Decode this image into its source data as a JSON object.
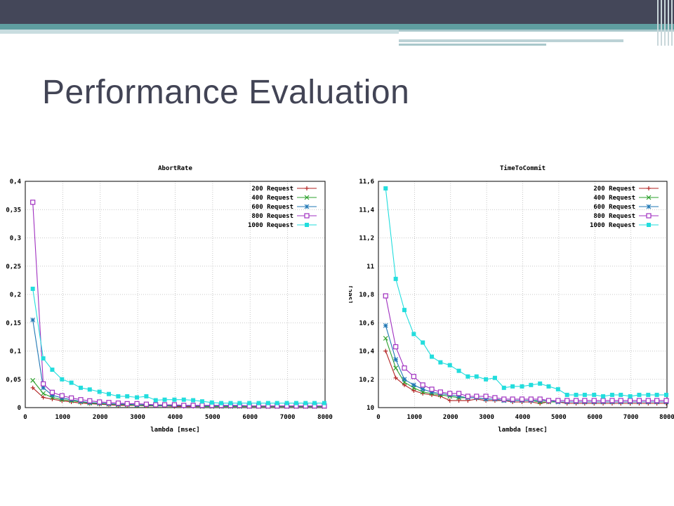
{
  "slide": {
    "title": "Performance Evaluation",
    "colors": {
      "header": "#444759",
      "accent": "#5f9ea0",
      "title": "#424455"
    }
  },
  "chart_data": [
    {
      "type": "line",
      "title": "AbortRate",
      "xlabel": "lambda [msec]",
      "ylabel": "",
      "xlim": [
        0,
        8000
      ],
      "ylim": [
        0,
        0.4
      ],
      "xticks": [
        "0",
        "1000",
        "2000",
        "3000",
        "4000",
        "5000",
        "6000",
        "7000",
        "8000"
      ],
      "yticks": [
        "0",
        "0,05",
        "0,1",
        "0,15",
        "0,2",
        "0,25",
        "0,3",
        "0,35",
        "0,4"
      ],
      "grid": true,
      "legend_position": "top-right",
      "x": [
        200,
        480,
        720,
        980,
        1230,
        1480,
        1720,
        1980,
        2230,
        2480,
        2720,
        2980,
        3230,
        3480,
        3720,
        3980,
        4230,
        4480,
        4720,
        4980,
        5230,
        5480,
        5720,
        5980,
        6230,
        6480,
        6720,
        6980,
        7230,
        7480,
        7720,
        7980
      ],
      "series": [
        {
          "name": "200 Request",
          "color": "#b22222",
          "marker": "plus",
          "values": [
            0.035,
            0.018,
            0.015,
            0.012,
            0.01,
            0.008,
            0.007,
            0.006,
            0.005,
            0.004,
            0.004,
            0.004,
            0.003,
            0.003,
            0.003,
            0.002,
            0.002,
            0.002,
            0.002,
            0.002,
            0.002,
            0.002,
            0.002,
            0.002,
            0.002,
            0.002,
            0.002,
            0.002,
            0.002,
            0.002,
            0.002,
            0.002
          ]
        },
        {
          "name": "400 Request",
          "color": "#2ca02c",
          "marker": "x",
          "values": [
            0.048,
            0.025,
            0.018,
            0.014,
            0.012,
            0.01,
            0.008,
            0.007,
            0.006,
            0.005,
            0.005,
            0.004,
            0.004,
            0.003,
            0.003,
            0.003,
            0.003,
            0.003,
            0.002,
            0.002,
            0.002,
            0.002,
            0.002,
            0.002,
            0.002,
            0.002,
            0.002,
            0.002,
            0.002,
            0.002,
            0.002,
            0.002
          ]
        },
        {
          "name": "600 Request",
          "color": "#1f77b4",
          "marker": "star",
          "values": [
            0.155,
            0.035,
            0.022,
            0.017,
            0.014,
            0.011,
            0.009,
            0.008,
            0.007,
            0.006,
            0.006,
            0.005,
            0.005,
            0.004,
            0.004,
            0.004,
            0.003,
            0.003,
            0.003,
            0.003,
            0.003,
            0.003,
            0.003,
            0.003,
            0.003,
            0.003,
            0.003,
            0.003,
            0.003,
            0.003,
            0.003,
            0.003
          ]
        },
        {
          "name": "800 Request",
          "color": "#a030c0",
          "marker": "square-open",
          "values": [
            0.363,
            0.042,
            0.027,
            0.021,
            0.017,
            0.014,
            0.012,
            0.01,
            0.009,
            0.008,
            0.007,
            0.007,
            0.006,
            0.005,
            0.005,
            0.005,
            0.004,
            0.004,
            0.004,
            0.004,
            0.004,
            0.004,
            0.004,
            0.003,
            0.003,
            0.003,
            0.003,
            0.003,
            0.003,
            0.003,
            0.003,
            0.003
          ]
        },
        {
          "name": "1000 Request",
          "color": "#22dddd",
          "marker": "square",
          "values": [
            0.21,
            0.087,
            0.067,
            0.05,
            0.044,
            0.035,
            0.032,
            0.028,
            0.024,
            0.02,
            0.02,
            0.018,
            0.02,
            0.013,
            0.014,
            0.014,
            0.014,
            0.013,
            0.011,
            0.009,
            0.008,
            0.008,
            0.008,
            0.008,
            0.008,
            0.008,
            0.008,
            0.008,
            0.008,
            0.008,
            0.008,
            0.008
          ]
        }
      ]
    },
    {
      "type": "line",
      "title": "TimeToCommit",
      "xlabel": "lambda [msec]",
      "ylabel": "[sec]",
      "xlim": [
        0,
        8000
      ],
      "ylim": [
        10,
        11.6
      ],
      "xticks": [
        "0",
        "1000",
        "2000",
        "3000",
        "4000",
        "5000",
        "6000",
        "7000",
        "8000"
      ],
      "yticks": [
        "10",
        "10,2",
        "10,4",
        "10,6",
        "10,8",
        "11",
        "11,2",
        "11,4",
        "11,6"
      ],
      "grid": true,
      "legend_position": "top-right",
      "x": [
        200,
        480,
        720,
        980,
        1230,
        1480,
        1720,
        1980,
        2230,
        2480,
        2720,
        2980,
        3230,
        3480,
        3720,
        3980,
        4230,
        4480,
        4720,
        4980,
        5230,
        5480,
        5720,
        5980,
        6230,
        6480,
        6720,
        6980,
        7230,
        7480,
        7720,
        7980
      ],
      "series": [
        {
          "name": "200 Request",
          "color": "#b22222",
          "marker": "plus",
          "values": [
            10.4,
            10.21,
            10.16,
            10.12,
            10.1,
            10.09,
            10.08,
            10.05,
            10.05,
            10.05,
            10.06,
            10.05,
            10.05,
            10.05,
            10.04,
            10.04,
            10.04,
            10.03,
            10.04,
            10.04,
            10.03,
            10.03,
            10.03,
            10.03,
            10.03,
            10.03,
            10.03,
            10.03,
            10.03,
            10.03,
            10.03,
            10.03
          ]
        },
        {
          "name": "400 Request",
          "color": "#2ca02c",
          "marker": "x",
          "values": [
            10.49,
            10.28,
            10.18,
            10.14,
            10.11,
            10.1,
            10.09,
            10.08,
            10.07,
            10.07,
            10.07,
            10.06,
            10.06,
            10.05,
            10.05,
            10.05,
            10.05,
            10.04,
            10.04,
            10.04,
            10.04,
            10.04,
            10.04,
            10.04,
            10.04,
            10.04,
            10.04,
            10.04,
            10.04,
            10.04,
            10.04,
            10.04
          ]
        },
        {
          "name": "600 Request",
          "color": "#1f77b4",
          "marker": "star",
          "values": [
            10.58,
            10.34,
            10.2,
            10.16,
            10.13,
            10.11,
            10.1,
            10.09,
            10.08,
            10.07,
            10.07,
            10.06,
            10.06,
            10.05,
            10.05,
            10.05,
            10.05,
            10.05,
            10.05,
            10.04,
            10.04,
            10.04,
            10.04,
            10.04,
            10.04,
            10.04,
            10.04,
            10.04,
            10.04,
            10.04,
            10.04,
            10.04
          ]
        },
        {
          "name": "800 Request",
          "color": "#a030c0",
          "marker": "square-open",
          "values": [
            10.79,
            10.43,
            10.28,
            10.22,
            10.16,
            10.13,
            10.11,
            10.1,
            10.1,
            10.08,
            10.08,
            10.08,
            10.07,
            10.06,
            10.06,
            10.06,
            10.06,
            10.06,
            10.05,
            10.05,
            10.05,
            10.05,
            10.05,
            10.05,
            10.05,
            10.05,
            10.05,
            10.05,
            10.05,
            10.05,
            10.05,
            10.05
          ]
        },
        {
          "name": "1000 Request",
          "color": "#22dddd",
          "marker": "square",
          "values": [
            11.55,
            10.91,
            10.69,
            10.52,
            10.46,
            10.36,
            10.32,
            10.3,
            10.26,
            10.22,
            10.22,
            10.2,
            10.21,
            10.14,
            10.15,
            10.15,
            10.16,
            10.17,
            10.15,
            10.13,
            10.09,
            10.09,
            10.09,
            10.09,
            10.08,
            10.09,
            10.09,
            10.08,
            10.09,
            10.09,
            10.09,
            10.09
          ]
        }
      ]
    }
  ]
}
